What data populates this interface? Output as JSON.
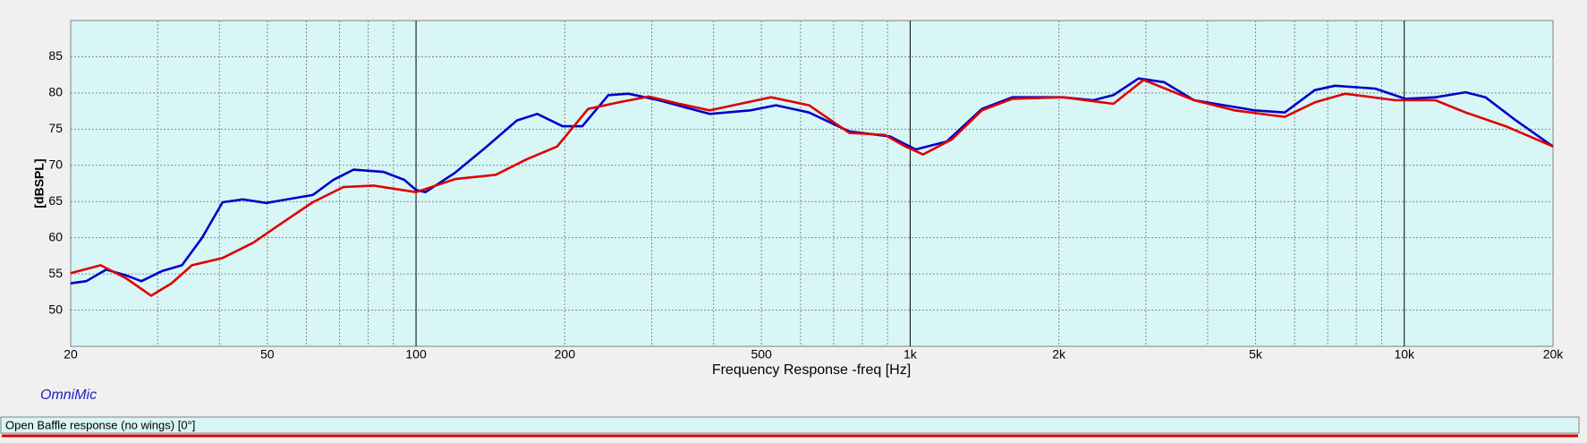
{
  "chart_data": {
    "type": "line",
    "ylabel": "[dBSPL]",
    "xlabel": "Frequency Response -freq [Hz]",
    "watermark": "OmniMic",
    "status": "Open Baffle response (no wings) [0°]",
    "xscale": "log",
    "grid": true,
    "xlim": [
      20,
      20000
    ],
    "ylim": [
      45,
      90
    ],
    "yticks": [
      50,
      55,
      60,
      65,
      70,
      75,
      80,
      85
    ],
    "xticks": [
      20,
      50,
      100,
      200,
      500,
      {
        "value": 1000,
        "label": "1k"
      },
      {
        "value": 2000,
        "label": "2k"
      },
      {
        "value": 5000,
        "label": "5k"
      },
      {
        "value": 10000,
        "label": "10k"
      },
      {
        "value": 20000,
        "label": "20k"
      }
    ],
    "xticks_minor": [
      30,
      40,
      60,
      70,
      80,
      90,
      300,
      400,
      600,
      700,
      800,
      900,
      3000,
      4000,
      6000,
      7000,
      8000,
      9000
    ],
    "series": [
      {
        "color": "#0000c8",
        "x": [
          20,
          21.5,
          23.6,
          25.9,
          27.8,
          30.6,
          33.6,
          36.9,
          40.6,
          44.6,
          49.8,
          53.7,
          61.8,
          68,
          74.7,
          86,
          94.7,
          100,
          104.5,
          120,
          139,
          160,
          176,
          198,
          217,
          245,
          269,
          310,
          393,
          475,
          535,
          624,
          753,
          910,
          1026,
          1186,
          1397,
          1610,
          2037,
          2349,
          2578,
          2899,
          3263,
          3755,
          4322,
          4974,
          5729,
          6590,
          7240,
          8733,
          10050,
          11560,
          13310,
          14600,
          16830,
          20000
        ],
        "values": [
          53.7,
          54.0,
          55.6,
          54.8,
          54.0,
          55.4,
          56.2,
          60.0,
          64.9,
          65.3,
          64.8,
          65.2,
          65.9,
          68.0,
          69.4,
          69.1,
          68.0,
          66.6,
          66.3,
          69.0,
          72.6,
          76.2,
          77.1,
          75.4,
          75.4,
          79.7,
          79.9,
          79.0,
          77.1,
          77.6,
          78.3,
          77.3,
          74.7,
          74.0,
          72.2,
          73.3,
          77.8,
          79.4,
          79.4,
          79.0,
          79.7,
          82.0,
          81.5,
          79.0,
          78.3,
          77.6,
          77.3,
          80.4,
          81.0,
          80.6,
          79.2,
          79.4,
          80.1,
          79.4,
          76.2,
          72.6
        ]
      },
      {
        "color": "#e00000",
        "x": [
          20,
          23,
          25.9,
          29.1,
          32,
          35.2,
          40.6,
          46.8,
          53.7,
          61.8,
          71.3,
          82,
          100,
          120,
          145,
          167,
          193,
          223,
          257,
          296,
          341,
          393,
          453,
          523,
          624,
          753,
          889,
          978,
          1062,
          1215,
          1397,
          1610,
          2037,
          2578,
          2969,
          3755,
          4530,
          5729,
          6590,
          7590,
          9580,
          11560,
          13310,
          16050,
          20000
        ],
        "values": [
          55.1,
          56.2,
          54.4,
          52.0,
          53.7,
          56.2,
          57.2,
          59.3,
          62.1,
          64.9,
          67.0,
          67.2,
          66.3,
          68.1,
          68.7,
          70.8,
          72.6,
          77.8,
          78.7,
          79.5,
          78.5,
          77.6,
          78.5,
          79.4,
          78.3,
          74.5,
          74.2,
          72.6,
          71.5,
          73.6,
          77.6,
          79.2,
          79.4,
          78.5,
          81.8,
          79.0,
          77.6,
          76.7,
          78.7,
          79.9,
          79.0,
          79.0,
          77.3,
          75.4,
          72.6
        ]
      }
    ]
  }
}
